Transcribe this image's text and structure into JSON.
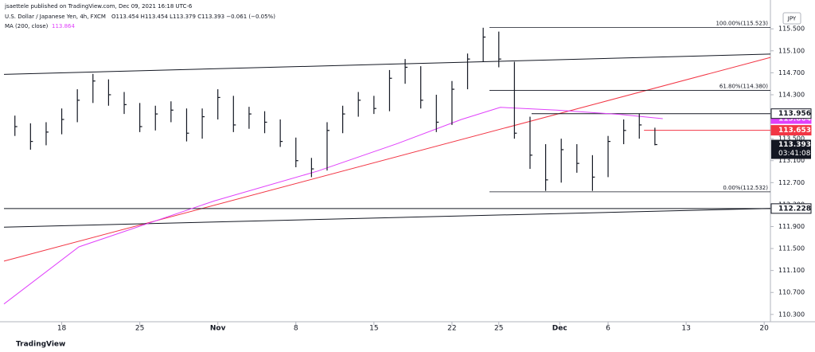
{
  "chart_data": {
    "type": "ohlc",
    "publisher": "jsaettele published on TradingView.com, Dec 09, 2021 16:18 UTC-6",
    "symbol": "U.S. Dollar / Japanese Yen, 4h, FXCM",
    "ohlc_legend": "O113.454 H113.454 L113.379 C113.393 −0.061 (−0.05%)",
    "currency": "JPY",
    "brand": "TradingView",
    "color": "#131722",
    "x": [
      -3,
      -2,
      -1,
      0,
      1,
      2,
      3,
      4,
      5,
      6,
      7,
      8,
      9,
      10,
      11,
      12,
      13,
      14,
      15,
      16,
      17,
      18,
      19,
      20,
      21,
      22,
      23,
      24,
      25,
      26,
      27,
      28,
      29,
      30,
      31,
      32,
      33,
      34,
      35,
      36,
      37,
      38
    ],
    "high": [
      113.92,
      113.78,
      113.8,
      114.05,
      114.4,
      114.68,
      114.58,
      114.35,
      114.15,
      114.1,
      114.18,
      114.05,
      114.05,
      114.4,
      114.28,
      114.08,
      114.0,
      113.85,
      113.52,
      113.15,
      113.8,
      114.1,
      114.35,
      114.28,
      114.75,
      114.95,
      114.82,
      114.3,
      114.55,
      115.05,
      115.52,
      115.45,
      114.9,
      113.9,
      113.4,
      113.5,
      113.4,
      113.2,
      113.55,
      113.85,
      113.96,
      113.7
    ],
    "low": [
      113.55,
      113.3,
      113.38,
      113.58,
      113.8,
      114.15,
      114.1,
      113.95,
      113.62,
      113.65,
      113.8,
      113.45,
      113.5,
      113.85,
      113.62,
      113.68,
      113.6,
      113.35,
      112.98,
      112.8,
      112.92,
      113.6,
      113.9,
      113.95,
      114.0,
      114.5,
      114.05,
      113.62,
      113.75,
      114.4,
      114.9,
      114.8,
      113.5,
      112.95,
      112.55,
      112.7,
      112.88,
      112.55,
      112.8,
      113.4,
      113.5,
      113.38
    ],
    "close": [
      113.72,
      113.45,
      113.62,
      113.85,
      114.2,
      114.55,
      114.3,
      114.12,
      113.72,
      113.95,
      114.02,
      113.6,
      113.9,
      114.25,
      113.75,
      113.95,
      113.8,
      113.45,
      113.1,
      112.95,
      113.65,
      113.95,
      114.2,
      114.05,
      114.6,
      114.8,
      114.2,
      113.8,
      114.4,
      114.95,
      115.35,
      114.95,
      113.6,
      113.2,
      112.75,
      113.3,
      113.05,
      112.8,
      113.45,
      113.65,
      113.75,
      113.393
    ],
    "last_label": "113.393",
    "countdown": "03:41:08",
    "indicators": [
      {
        "name": "MA (200, close)",
        "value_label": "113.864",
        "color": "#e040fb",
        "x": [
          -3.7,
          1.1,
          9.8,
          16.4,
          21.5,
          25.6,
          28.1,
          31.7,
          35.8,
          38.5
        ],
        "values": [
          110.49,
          111.53,
          112.37,
          112.91,
          113.41,
          113.85,
          114.07,
          114.02,
          113.94,
          113.864
        ]
      }
    ],
    "trendlines": [
      {
        "color": "#131722",
        "x": [
          -3.7,
          45.4
        ],
        "values": [
          114.67,
          115.04
        ]
      },
      {
        "color": "#f23645",
        "x": [
          -3.7,
          45.4
        ],
        "values": [
          111.27,
          114.98
        ]
      },
      {
        "color": "#131722",
        "x": [
          -3.7,
          45.4
        ],
        "values": [
          111.89,
          112.23
        ]
      }
    ],
    "levels": [
      {
        "value": 112.228,
        "label": "112.228",
        "x_start": -3.7,
        "color": "#131722"
      },
      {
        "value": 113.956,
        "label": "113.956",
        "x_start": 30.1,
        "color": "#131722"
      },
      {
        "value": 113.653,
        "label": "113.653",
        "x_start": 37.3,
        "color": "#f23645"
      }
    ],
    "fib": [
      {
        "value": 115.523,
        "label": "100.00%(115.523)",
        "x_start": 27.4
      },
      {
        "value": 114.38,
        "label": "61.80%(114.380)",
        "x_start": 27.4
      },
      {
        "value": 112.532,
        "label": "0.00%(112.532)",
        "x_start": 27.4
      }
    ],
    "xlim": [
      -3.7,
      45.4
    ],
    "ylim": [
      110.08,
      115.88
    ],
    "xticks": [
      {
        "value": 0,
        "label": "18"
      },
      {
        "value": 5,
        "label": "25"
      },
      {
        "value": 10,
        "label": "Nov"
      },
      {
        "value": 15,
        "label": "8"
      },
      {
        "value": 20,
        "label": "15"
      },
      {
        "value": 25,
        "label": "22"
      },
      {
        "value": 28,
        "label": "25"
      },
      {
        "value": 31.9,
        "label": "Dec"
      },
      {
        "value": 35,
        "label": "6"
      },
      {
        "value": 40,
        "label": "13"
      },
      {
        "value": 45,
        "label": "20"
      }
    ],
    "yticks": [
      {
        "value": 110.3,
        "label": "110.300"
      },
      {
        "value": 110.7,
        "label": "110.700"
      },
      {
        "value": 111.1,
        "label": "111.100"
      },
      {
        "value": 111.5,
        "label": "111.500"
      },
      {
        "value": 111.9,
        "label": "111.900"
      },
      {
        "value": 112.3,
        "label": "112.300"
      },
      {
        "value": 112.7,
        "label": "112.700"
      },
      {
        "value": 113.1,
        "label": "113.100"
      },
      {
        "value": 113.5,
        "label": "113.500"
      },
      {
        "value": 113.9,
        "label": "113.900"
      },
      {
        "value": 114.3,
        "label": "114.300"
      },
      {
        "value": 114.7,
        "label": "114.700"
      },
      {
        "value": 115.1,
        "label": "115.100"
      },
      {
        "value": 115.5,
        "label": "115.500"
      }
    ]
  }
}
